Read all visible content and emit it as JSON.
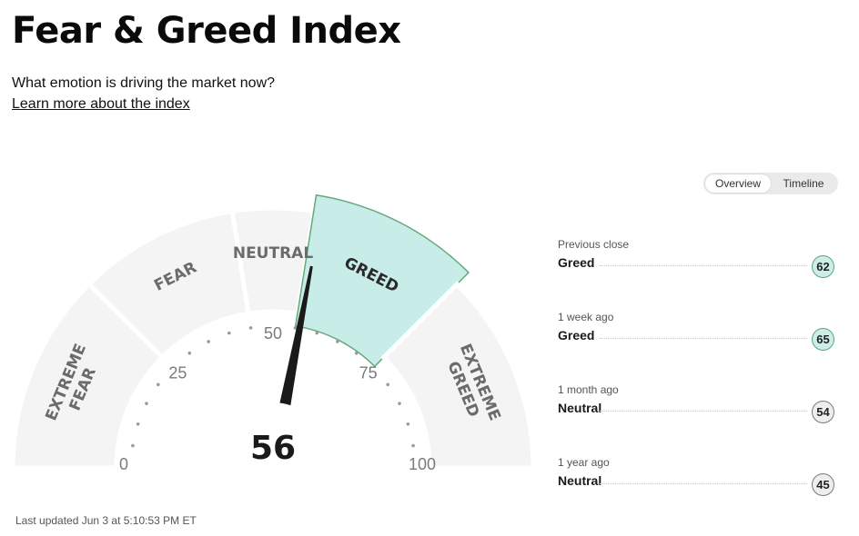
{
  "header": {
    "title": "Fear & Greed Index",
    "subtitle": "What emotion is driving the market now?",
    "learn_link": "Learn more about the index"
  },
  "gauge": {
    "value": 56,
    "score_label": "56",
    "zones": [
      {
        "line1": "EXTREME",
        "line2": "FEAR",
        "from": 0,
        "to": 25,
        "active": false
      },
      {
        "line1": "FEAR",
        "line2": "",
        "from": 25,
        "to": 45,
        "active": false
      },
      {
        "line1": "NEUTRAL",
        "line2": "",
        "from": 45,
        "to": 55,
        "active": false
      },
      {
        "line1": "GREED",
        "line2": "",
        "from": 55,
        "to": 75,
        "active": true
      },
      {
        "line1": "EXTREME",
        "line2": "GREED",
        "from": 75,
        "to": 100,
        "active": false
      }
    ],
    "tick_labels": [
      {
        "value": 0,
        "text": "0"
      },
      {
        "value": 25,
        "text": "25"
      },
      {
        "value": 50,
        "text": "50"
      },
      {
        "value": 75,
        "text": "75"
      },
      {
        "value": 100,
        "text": "100"
      }
    ],
    "colors": {
      "zone_fill": "#f4f4f4",
      "active_fill": "#c8ece7",
      "active_stroke": "#66a97a",
      "needle": "#1a1a1a"
    }
  },
  "view_toggle": {
    "options": [
      "Overview",
      "Timeline"
    ],
    "selected": "Overview"
  },
  "history": [
    {
      "period": "Previous close",
      "label": "Greed",
      "value": "62",
      "tone": "greed"
    },
    {
      "period": "1 week ago",
      "label": "Greed",
      "value": "65",
      "tone": "greed"
    },
    {
      "period": "1 month ago",
      "label": "Neutral",
      "value": "54",
      "tone": "neutral"
    },
    {
      "period": "1 year ago",
      "label": "Neutral",
      "value": "45",
      "tone": "neutral"
    }
  ],
  "footer": {
    "last_updated": "Last updated Jun 3 at 5:10:53 PM ET"
  }
}
